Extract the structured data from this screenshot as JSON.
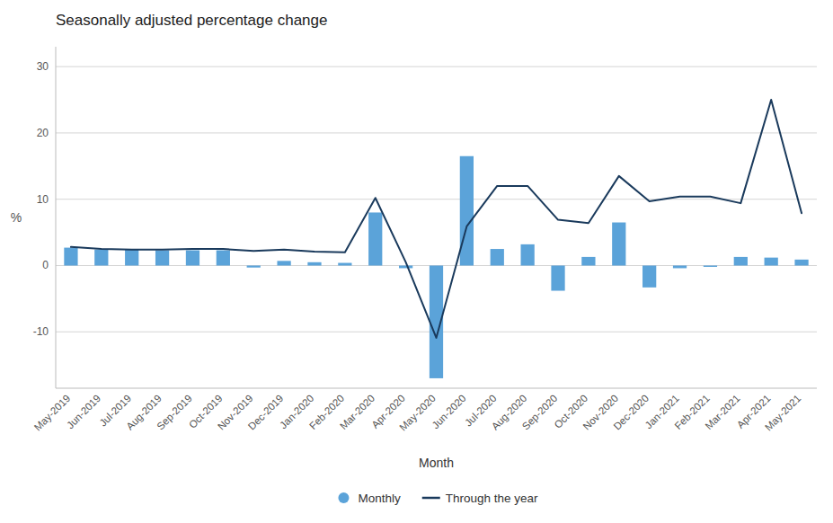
{
  "chart_data": {
    "type": "bar",
    "title": "Seasonally adjusted percentage change",
    "xlabel": "Month",
    "ylabel": "%",
    "categories": [
      "May-2019",
      "Jun-2019",
      "Jul-2019",
      "Aug-2019",
      "Sep-2019",
      "Oct-2019",
      "Nov-2019",
      "Dec-2019",
      "Jan-2020",
      "Feb-2020",
      "Mar-2020",
      "Apr-2020",
      "May-2020",
      "Jun-2020",
      "Jul-2020",
      "Aug-2020",
      "Sep-2020",
      "Oct-2020",
      "Nov-2020",
      "Dec-2020",
      "Jan-2021",
      "Feb-2021",
      "Mar-2021",
      "Apr-2021",
      "May-2021"
    ],
    "series": [
      {
        "name": "Monthly",
        "type": "bar",
        "color": "#5ba3d9",
        "values": [
          2.7,
          2.4,
          2.4,
          2.3,
          2.3,
          2.3,
          -0.3,
          0.7,
          0.5,
          0.4,
          8.0,
          -0.4,
          -17.0,
          16.5,
          2.5,
          3.2,
          -3.8,
          1.3,
          6.5,
          -3.3,
          -0.4,
          -0.2,
          1.3,
          1.2,
          0.9
        ]
      },
      {
        "name": "Through the year",
        "type": "line",
        "color": "#1a3a5c",
        "values": [
          2.8,
          2.5,
          2.4,
          2.4,
          2.5,
          2.5,
          2.2,
          2.4,
          2.1,
          2.0,
          10.2,
          0.5,
          -10.9,
          5.9,
          12.0,
          12.0,
          6.9,
          6.4,
          13.5,
          9.7,
          10.4,
          10.4,
          9.4,
          25.0,
          7.9
        ]
      }
    ],
    "ylim": [
      -18.5,
      33
    ],
    "yticks": [
      -10,
      0,
      10,
      20,
      30
    ],
    "grid": true,
    "legend": "bottom"
  }
}
